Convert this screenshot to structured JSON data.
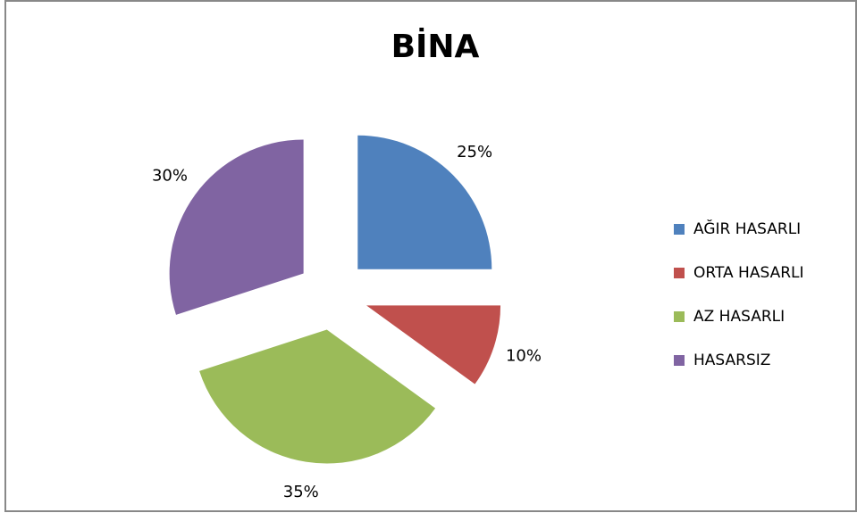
{
  "chart_data": {
    "type": "pie",
    "title": "BİNA",
    "categories": [
      "AĞIR HASARLI",
      "ORTA HASARLI",
      "AZ HASARLI",
      "HASARSIZ"
    ],
    "values": [
      25,
      10,
      35,
      30
    ],
    "value_labels": [
      "25%",
      "10%",
      "35%",
      "30%"
    ],
    "colors": [
      "#4f81bd",
      "#c0504d",
      "#9bbb59",
      "#8064a2"
    ],
    "legend": "right"
  }
}
